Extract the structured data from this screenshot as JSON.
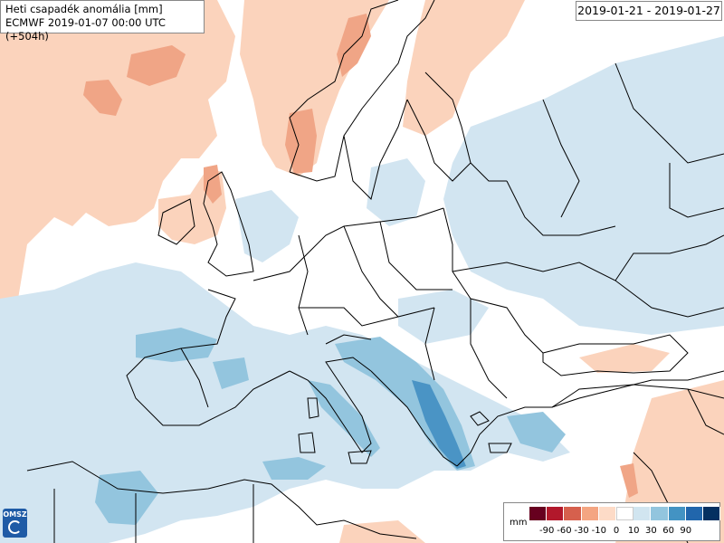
{
  "header": {
    "title": "Heti csapadék anomália [mm]",
    "subtitle": "ECMWF 2019-01-07 00:00 UTC (+504h)"
  },
  "date_range": "2019-01-21 - 2019-01-27",
  "logo_text": "OMSZ",
  "legend": {
    "unit": "mm",
    "colors": [
      "#67001f",
      "#b2182b",
      "#d6604d",
      "#f4a582",
      "#fddbc7",
      "#ffffff",
      "#d1e5f0",
      "#92c5de",
      "#4393c3",
      "#2166ac",
      "#053061"
    ],
    "ticks": [
      "-90",
      "-60",
      "-30",
      "-10",
      "0",
      "10",
      "30",
      "60",
      "90"
    ]
  },
  "map_colors": {
    "dry_light": "#fbd3bc",
    "dry_mid": "#f0a586",
    "wet_light": "#d2e5f1",
    "wet_mid": "#93c5de",
    "wet_dark": "#4a94c5",
    "border": "#000000"
  }
}
